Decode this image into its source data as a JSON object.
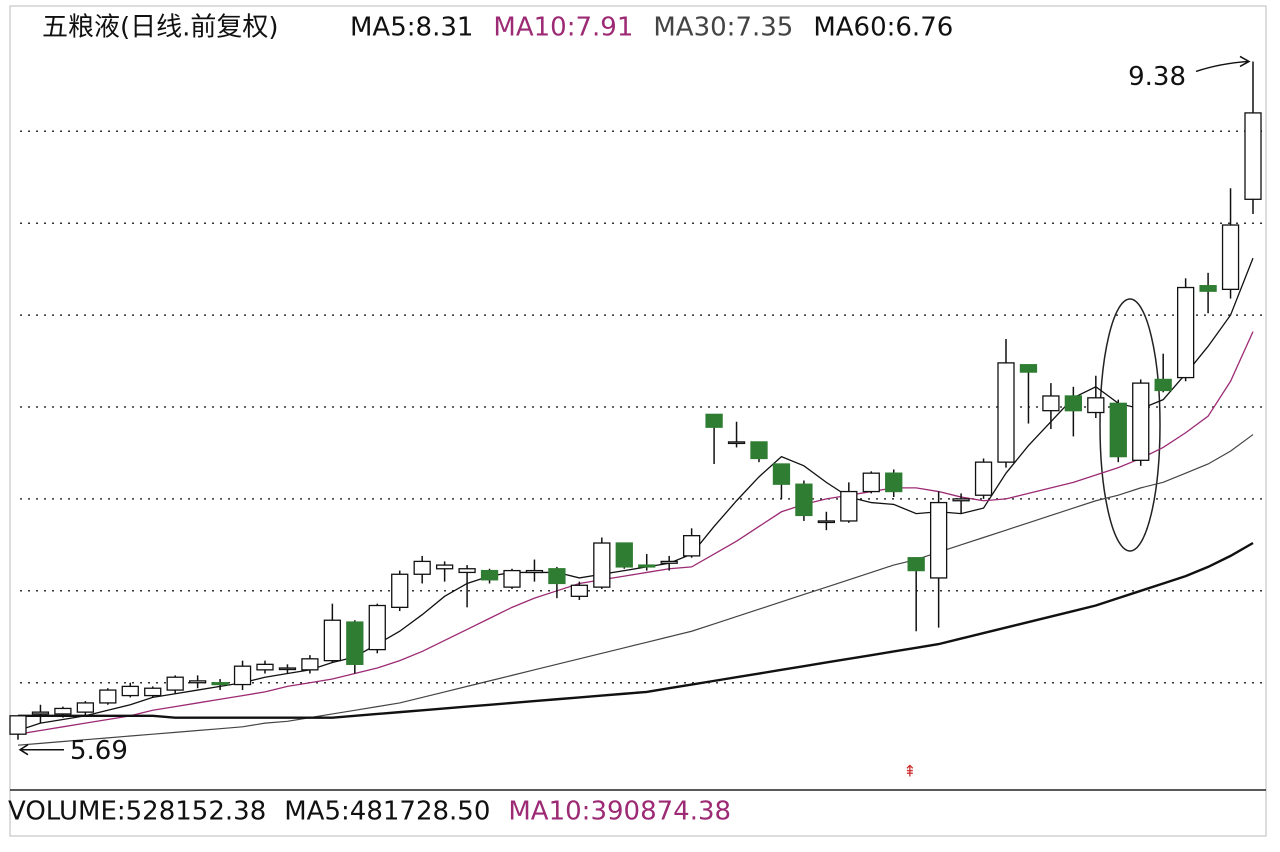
{
  "chart_data": {
    "type": "candlestick",
    "title": "五粮液(日线.前复权)",
    "indicators": [
      {
        "label": "MA5:8.31",
        "color": "#111111"
      },
      {
        "label": "MA10:7.91",
        "color": "#9c2a74"
      },
      {
        "label": "MA30:7.35",
        "color": "#444444"
      },
      {
        "label": "MA60:6.76",
        "color": "#111111"
      }
    ],
    "candles": {
      "open": [
        5.72,
        5.83,
        5.83,
        5.84,
        5.89,
        5.93,
        5.93,
        5.96,
        6.0,
        6.0,
        5.99,
        6.07,
        6.08,
        6.07,
        6.12,
        6.33,
        6.18,
        6.41,
        6.59,
        6.62,
        6.6,
        6.61,
        6.52,
        6.6,
        6.62,
        6.47,
        6.52,
        6.76,
        6.64,
        6.65,
        6.69,
        7.46,
        7.31,
        7.31,
        7.19,
        7.08,
        6.88,
        6.88,
        7.04,
        7.14,
        6.68,
        6.57,
        6.99,
        7.02,
        7.2,
        7.73,
        7.48,
        7.56,
        7.47,
        7.52,
        7.21,
        7.65,
        7.66,
        8.16,
        8.14,
        8.63
      ],
      "high": [
        5.82,
        5.88,
        5.87,
        5.9,
        5.97,
        6.0,
        5.98,
        6.04,
        6.04,
        6.02,
        6.12,
        6.12,
        6.1,
        6.15,
        6.43,
        6.34,
        6.43,
        6.61,
        6.69,
        6.66,
        6.64,
        6.62,
        6.62,
        6.67,
        6.63,
        6.55,
        6.79,
        6.76,
        6.7,
        6.69,
        6.84,
        7.46,
        7.42,
        7.31,
        7.19,
        7.1,
        6.93,
        7.09,
        7.15,
        7.16,
        6.68,
        7.04,
        7.03,
        7.22,
        7.87,
        7.73,
        7.63,
        7.61,
        7.67,
        7.54,
        7.65,
        7.79,
        8.2,
        8.23,
        8.69,
        9.38
      ],
      "low": [
        5.69,
        5.78,
        5.81,
        5.82,
        5.88,
        5.92,
        5.92,
        5.94,
        5.97,
        5.96,
        5.96,
        6.05,
        6.05,
        6.05,
        6.11,
        6.05,
        6.16,
        6.39,
        6.54,
        6.55,
        6.41,
        6.54,
        6.51,
        6.55,
        6.46,
        6.45,
        6.51,
        6.62,
        6.61,
        6.61,
        6.68,
        7.19,
        7.28,
        7.2,
        7.0,
        6.88,
        6.83,
        6.87,
        7.03,
        7.01,
        6.28,
        6.3,
        6.92,
        7.0,
        7.17,
        7.41,
        7.38,
        7.34,
        7.44,
        7.2,
        7.18,
        7.58,
        7.64,
        8.01,
        8.09,
        8.55
      ],
      "close": [
        5.82,
        5.84,
        5.86,
        5.89,
        5.96,
        5.98,
        5.97,
        6.03,
        6.01,
        5.99,
        6.09,
        6.1,
        6.08,
        6.13,
        6.34,
        6.1,
        6.42,
        6.59,
        6.66,
        6.64,
        6.62,
        6.56,
        6.61,
        6.61,
        6.54,
        6.53,
        6.76,
        6.63,
        6.63,
        6.66,
        6.8,
        7.39,
        7.31,
        7.22,
        7.08,
        6.91,
        6.88,
        7.04,
        7.14,
        7.04,
        6.61,
        6.98,
        7.0,
        7.2,
        7.74,
        7.69,
        7.56,
        7.48,
        7.55,
        7.23,
        7.63,
        7.59,
        8.15,
        8.13,
        8.49,
        9.1
      ]
    },
    "up_color": "#ffffff",
    "down_color": "#2f7d32",
    "lines": [
      {
        "color": "#111111",
        "width": 1.3,
        "values": [
          5.74,
          5.78,
          5.8,
          5.82,
          5.85,
          5.88,
          5.92,
          5.94,
          5.96,
          5.98,
          6.0,
          6.03,
          6.05,
          6.07,
          6.11,
          6.14,
          6.21,
          6.28,
          6.37,
          6.47,
          6.54,
          6.58,
          6.6,
          6.6,
          6.6,
          6.57,
          6.59,
          6.61,
          6.63,
          6.65,
          6.7,
          6.85,
          6.99,
          7.12,
          7.23,
          7.18,
          7.09,
          7.01,
          6.98,
          6.97,
          6.92,
          6.93,
          6.92,
          6.95,
          7.14,
          7.29,
          7.42,
          7.55,
          7.61,
          7.52,
          7.49,
          7.54,
          7.68,
          7.83,
          8.0,
          8.31
        ]
      },
      {
        "color": "#9c2a74",
        "width": 1.3,
        "values": [
          5.72,
          5.74,
          5.76,
          5.78,
          5.8,
          5.82,
          5.85,
          5.87,
          5.89,
          5.91,
          5.93,
          5.95,
          5.98,
          6.0,
          6.02,
          6.05,
          6.08,
          6.12,
          6.17,
          6.23,
          6.29,
          6.35,
          6.41,
          6.46,
          6.5,
          6.54,
          6.56,
          6.58,
          6.6,
          6.62,
          6.63,
          6.7,
          6.77,
          6.85,
          6.93,
          6.97,
          7.0,
          7.02,
          7.04,
          7.06,
          7.06,
          7.04,
          7.01,
          6.99,
          7.0,
          7.03,
          7.06,
          7.09,
          7.13,
          7.17,
          7.22,
          7.28,
          7.36,
          7.45,
          7.64,
          7.91
        ]
      },
      {
        "color": "#444444",
        "width": 1.2,
        "values": [
          5.66,
          5.67,
          5.68,
          5.69,
          5.7,
          5.71,
          5.72,
          5.73,
          5.74,
          5.75,
          5.76,
          5.78,
          5.79,
          5.81,
          5.83,
          5.85,
          5.87,
          5.89,
          5.92,
          5.95,
          5.98,
          6.01,
          6.04,
          6.07,
          6.1,
          6.13,
          6.16,
          6.19,
          6.22,
          6.25,
          6.28,
          6.32,
          6.36,
          6.4,
          6.44,
          6.48,
          6.52,
          6.56,
          6.6,
          6.64,
          6.67,
          6.71,
          6.75,
          6.79,
          6.83,
          6.87,
          6.91,
          6.95,
          6.99,
          7.02,
          7.06,
          7.09,
          7.14,
          7.19,
          7.26,
          7.35
        ]
      },
      {
        "color": "#111111",
        "width": 2.4,
        "values": [
          5.82,
          5.82,
          5.82,
          5.82,
          5.82,
          5.82,
          5.82,
          5.81,
          5.81,
          5.81,
          5.81,
          5.81,
          5.81,
          5.81,
          5.81,
          5.82,
          5.83,
          5.84,
          5.85,
          5.86,
          5.87,
          5.88,
          5.89,
          5.9,
          5.91,
          5.92,
          5.93,
          5.94,
          5.95,
          5.97,
          5.99,
          6.01,
          6.03,
          6.05,
          6.07,
          6.09,
          6.11,
          6.13,
          6.15,
          6.17,
          6.19,
          6.21,
          6.24,
          6.27,
          6.3,
          6.33,
          6.36,
          6.39,
          6.42,
          6.46,
          6.5,
          6.54,
          6.58,
          6.63,
          6.69,
          6.76
        ]
      }
    ],
    "ylim": [
      5.4,
      9.6
    ],
    "grid_lines": [
      6,
      6.5,
      7,
      7.5,
      8,
      8.5,
      9
    ],
    "annotations": [
      9.38,
      5.69
    ],
    "volume_header": [
      {
        "label": "VOLUME:528152.38",
        "color": "#111111"
      },
      {
        "label": "MA5:481728.50",
        "color": "#111111"
      },
      {
        "label": "MA10:390874.38",
        "color": "#9c2a74"
      }
    ]
  }
}
